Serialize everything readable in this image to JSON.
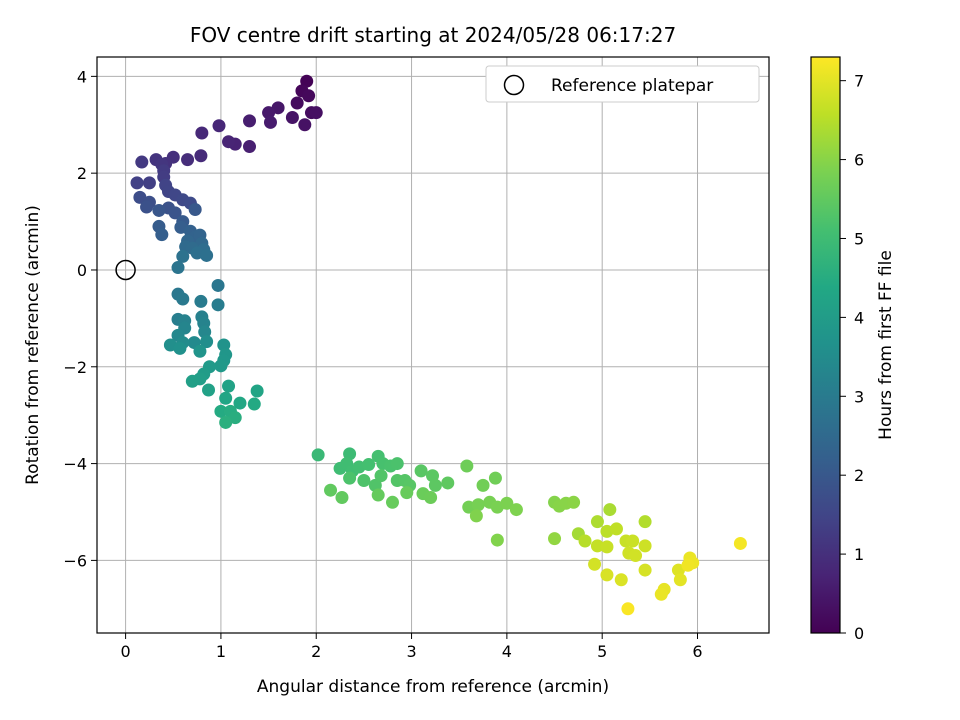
{
  "chart_data": {
    "type": "scatter",
    "title": "FOV centre drift starting at 2024/05/28 06:17:27",
    "xlabel": "Angular distance from reference (arcmin)",
    "ylabel": "Rotation from reference (arcmin)",
    "xlim": [
      -0.3,
      6.75
    ],
    "ylim": [
      -7.5,
      4.4
    ],
    "x_ticks": [
      0,
      1,
      2,
      3,
      4,
      5,
      6
    ],
    "y_ticks": [
      -6,
      -4,
      -2,
      0,
      2,
      4
    ],
    "grid": true,
    "legend": {
      "placement": "top-right",
      "entries": [
        "Reference platepar"
      ]
    },
    "reference_point": {
      "x": 0,
      "y": 0
    },
    "colorbar": {
      "label": "Hours from first FF file",
      "range": [
        0,
        7.3
      ],
      "ticks": [
        0,
        1,
        2,
        3,
        4,
        5,
        6,
        7
      ],
      "colormap": "viridis"
    },
    "points": [
      {
        "x": 1.9,
        "y": 3.9,
        "c": 0.05
      },
      {
        "x": 1.85,
        "y": 3.7,
        "c": 0.1
      },
      {
        "x": 1.92,
        "y": 3.6,
        "c": 0.15
      },
      {
        "x": 1.8,
        "y": 3.45,
        "c": 0.2
      },
      {
        "x": 1.95,
        "y": 3.25,
        "c": 0.25
      },
      {
        "x": 2.0,
        "y": 3.25,
        "c": 0.3
      },
      {
        "x": 1.88,
        "y": 3.0,
        "c": 0.35
      },
      {
        "x": 1.75,
        "y": 3.15,
        "c": 0.4
      },
      {
        "x": 1.6,
        "y": 3.35,
        "c": 0.45
      },
      {
        "x": 1.5,
        "y": 3.25,
        "c": 0.5
      },
      {
        "x": 1.52,
        "y": 3.05,
        "c": 0.55
      },
      {
        "x": 1.3,
        "y": 3.08,
        "c": 0.6
      },
      {
        "x": 1.3,
        "y": 2.55,
        "c": 0.65
      },
      {
        "x": 1.15,
        "y": 2.6,
        "c": 0.7
      },
      {
        "x": 1.08,
        "y": 2.65,
        "c": 0.75
      },
      {
        "x": 0.98,
        "y": 2.98,
        "c": 0.8
      },
      {
        "x": 0.8,
        "y": 2.83,
        "c": 0.85
      },
      {
        "x": 0.79,
        "y": 2.36,
        "c": 0.9
      },
      {
        "x": 0.65,
        "y": 2.28,
        "c": 0.95
      },
      {
        "x": 0.5,
        "y": 2.33,
        "c": 1.0
      },
      {
        "x": 0.42,
        "y": 2.2,
        "c": 1.05
      },
      {
        "x": 0.32,
        "y": 2.28,
        "c": 1.1
      },
      {
        "x": 0.38,
        "y": 2.18,
        "c": 1.15
      },
      {
        "x": 0.17,
        "y": 2.23,
        "c": 1.2
      },
      {
        "x": 0.4,
        "y": 2.05,
        "c": 1.25
      },
      {
        "x": 0.4,
        "y": 1.92,
        "c": 1.3
      },
      {
        "x": 0.25,
        "y": 1.8,
        "c": 1.35
      },
      {
        "x": 0.12,
        "y": 1.8,
        "c": 1.4
      },
      {
        "x": 0.42,
        "y": 1.75,
        "c": 1.45
      },
      {
        "x": 0.45,
        "y": 1.62,
        "c": 1.5
      },
      {
        "x": 0.52,
        "y": 1.55,
        "c": 1.55
      },
      {
        "x": 0.6,
        "y": 1.45,
        "c": 1.6
      },
      {
        "x": 0.68,
        "y": 1.38,
        "c": 1.65
      },
      {
        "x": 0.15,
        "y": 1.5,
        "c": 1.7
      },
      {
        "x": 0.25,
        "y": 1.4,
        "c": 1.75
      },
      {
        "x": 0.22,
        "y": 1.3,
        "c": 1.8
      },
      {
        "x": 0.45,
        "y": 1.28,
        "c": 1.85
      },
      {
        "x": 0.52,
        "y": 1.18,
        "c": 1.9
      },
      {
        "x": 0.35,
        "y": 1.23,
        "c": 1.95
      },
      {
        "x": 0.73,
        "y": 1.25,
        "c": 2.0
      },
      {
        "x": 0.6,
        "y": 1.0,
        "c": 2.05
      },
      {
        "x": 0.35,
        "y": 0.9,
        "c": 2.1
      },
      {
        "x": 0.58,
        "y": 0.88,
        "c": 2.15
      },
      {
        "x": 0.38,
        "y": 0.73,
        "c": 2.2
      },
      {
        "x": 0.68,
        "y": 0.8,
        "c": 2.25
      },
      {
        "x": 0.73,
        "y": 0.68,
        "c": 2.3
      },
      {
        "x": 0.78,
        "y": 0.72,
        "c": 2.35
      },
      {
        "x": 0.65,
        "y": 0.6,
        "c": 2.4
      },
      {
        "x": 0.8,
        "y": 0.55,
        "c": 2.45
      },
      {
        "x": 0.63,
        "y": 0.48,
        "c": 2.5
      },
      {
        "x": 0.7,
        "y": 0.45,
        "c": 2.55
      },
      {
        "x": 0.82,
        "y": 0.42,
        "c": 2.6
      },
      {
        "x": 0.75,
        "y": 0.35,
        "c": 2.65
      },
      {
        "x": 0.85,
        "y": 0.3,
        "c": 2.7
      },
      {
        "x": 0.6,
        "y": 0.28,
        "c": 2.75
      },
      {
        "x": 0.55,
        "y": 0.05,
        "c": 2.8
      },
      {
        "x": 0.97,
        "y": -0.32,
        "c": 2.85
      },
      {
        "x": 0.55,
        "y": -0.5,
        "c": 2.9
      },
      {
        "x": 0.6,
        "y": -0.6,
        "c": 2.95
      },
      {
        "x": 0.79,
        "y": -0.65,
        "c": 3.0
      },
      {
        "x": 0.97,
        "y": -0.72,
        "c": 3.05
      },
      {
        "x": 0.55,
        "y": -1.02,
        "c": 3.1
      },
      {
        "x": 0.8,
        "y": -0.97,
        "c": 3.15
      },
      {
        "x": 0.62,
        "y": -1.05,
        "c": 3.2
      },
      {
        "x": 0.82,
        "y": -1.1,
        "c": 3.25
      },
      {
        "x": 0.62,
        "y": -1.2,
        "c": 3.3
      },
      {
        "x": 0.83,
        "y": -1.28,
        "c": 3.35
      },
      {
        "x": 0.55,
        "y": -1.35,
        "c": 3.4
      },
      {
        "x": 0.72,
        "y": -1.5,
        "c": 3.45
      },
      {
        "x": 0.6,
        "y": -1.5,
        "c": 3.5
      },
      {
        "x": 0.85,
        "y": -1.48,
        "c": 3.55
      },
      {
        "x": 0.47,
        "y": -1.55,
        "c": 3.6
      },
      {
        "x": 0.57,
        "y": -1.62,
        "c": 3.65
      },
      {
        "x": 1.03,
        "y": -1.55,
        "c": 3.7
      },
      {
        "x": 0.78,
        "y": -1.68,
        "c": 3.75
      },
      {
        "x": 1.05,
        "y": -1.75,
        "c": 3.8
      },
      {
        "x": 1.03,
        "y": -1.87,
        "c": 3.85
      },
      {
        "x": 1.0,
        "y": -1.98,
        "c": 3.9
      },
      {
        "x": 0.88,
        "y": -2.0,
        "c": 3.95
      },
      {
        "x": 0.82,
        "y": -2.15,
        "c": 4.0
      },
      {
        "x": 0.78,
        "y": -2.25,
        "c": 4.05
      },
      {
        "x": 0.7,
        "y": -2.3,
        "c": 4.1
      },
      {
        "x": 0.87,
        "y": -2.48,
        "c": 4.15
      },
      {
        "x": 1.08,
        "y": -2.4,
        "c": 4.2
      },
      {
        "x": 1.38,
        "y": -2.5,
        "c": 4.25
      },
      {
        "x": 1.05,
        "y": -2.65,
        "c": 4.3
      },
      {
        "x": 1.2,
        "y": -2.75,
        "c": 4.35
      },
      {
        "x": 1.35,
        "y": -2.77,
        "c": 4.4
      },
      {
        "x": 1.0,
        "y": -2.92,
        "c": 4.45
      },
      {
        "x": 1.1,
        "y": -2.92,
        "c": 4.5
      },
      {
        "x": 1.15,
        "y": -3.05,
        "c": 4.55
      },
      {
        "x": 1.05,
        "y": -3.15,
        "c": 4.6
      },
      {
        "x": 2.02,
        "y": -3.82,
        "c": 4.9
      },
      {
        "x": 2.35,
        "y": -3.8,
        "c": 4.95
      },
      {
        "x": 2.25,
        "y": -4.1,
        "c": 5.0
      },
      {
        "x": 2.32,
        "y": -4.0,
        "c": 5.02
      },
      {
        "x": 2.38,
        "y": -4.15,
        "c": 5.05
      },
      {
        "x": 2.45,
        "y": -4.07,
        "c": 5.08
      },
      {
        "x": 2.55,
        "y": -4.02,
        "c": 5.1
      },
      {
        "x": 2.65,
        "y": -3.85,
        "c": 5.12
      },
      {
        "x": 2.7,
        "y": -4.0,
        "c": 5.15
      },
      {
        "x": 2.78,
        "y": -4.05,
        "c": 5.18
      },
      {
        "x": 2.85,
        "y": -4.0,
        "c": 5.2
      },
      {
        "x": 2.35,
        "y": -4.3,
        "c": 5.22
      },
      {
        "x": 2.5,
        "y": -4.35,
        "c": 5.25
      },
      {
        "x": 2.62,
        "y": -4.45,
        "c": 5.28
      },
      {
        "x": 2.68,
        "y": -4.25,
        "c": 5.3
      },
      {
        "x": 2.85,
        "y": -4.35,
        "c": 5.32
      },
      {
        "x": 2.93,
        "y": -4.35,
        "c": 5.35
      },
      {
        "x": 2.98,
        "y": -4.45,
        "c": 5.38
      },
      {
        "x": 3.1,
        "y": -4.15,
        "c": 5.4
      },
      {
        "x": 3.22,
        "y": -4.25,
        "c": 5.42
      },
      {
        "x": 3.25,
        "y": -4.45,
        "c": 5.45
      },
      {
        "x": 3.38,
        "y": -4.4,
        "c": 5.48
      },
      {
        "x": 2.15,
        "y": -4.55,
        "c": 5.5
      },
      {
        "x": 2.27,
        "y": -4.7,
        "c": 5.52
      },
      {
        "x": 2.65,
        "y": -4.65,
        "c": 5.55
      },
      {
        "x": 2.8,
        "y": -4.8,
        "c": 5.58
      },
      {
        "x": 2.95,
        "y": -4.6,
        "c": 5.6
      },
      {
        "x": 3.12,
        "y": -4.62,
        "c": 5.62
      },
      {
        "x": 3.2,
        "y": -4.7,
        "c": 5.65
      },
      {
        "x": 3.58,
        "y": -4.05,
        "c": 5.68
      },
      {
        "x": 3.88,
        "y": -4.3,
        "c": 5.7
      },
      {
        "x": 3.75,
        "y": -4.45,
        "c": 5.72
      },
      {
        "x": 3.6,
        "y": -4.9,
        "c": 5.75
      },
      {
        "x": 3.7,
        "y": -4.85,
        "c": 5.78
      },
      {
        "x": 3.82,
        "y": -4.8,
        "c": 5.8
      },
      {
        "x": 3.9,
        "y": -4.9,
        "c": 5.82
      },
      {
        "x": 4.0,
        "y": -4.82,
        "c": 5.85
      },
      {
        "x": 4.1,
        "y": -4.95,
        "c": 5.88
      },
      {
        "x": 3.68,
        "y": -5.08,
        "c": 5.9
      },
      {
        "x": 3.9,
        "y": -5.58,
        "c": 5.92
      },
      {
        "x": 4.5,
        "y": -4.8,
        "c": 5.95
      },
      {
        "x": 4.55,
        "y": -4.88,
        "c": 5.98
      },
      {
        "x": 4.62,
        "y": -4.82,
        "c": 6.0
      },
      {
        "x": 4.7,
        "y": -4.8,
        "c": 6.02
      },
      {
        "x": 4.5,
        "y": -5.55,
        "c": 6.1
      },
      {
        "x": 4.75,
        "y": -5.45,
        "c": 6.3
      },
      {
        "x": 5.08,
        "y": -4.95,
        "c": 6.35
      },
      {
        "x": 4.95,
        "y": -5.2,
        "c": 6.4
      },
      {
        "x": 5.45,
        "y": -5.2,
        "c": 6.45
      },
      {
        "x": 4.82,
        "y": -5.6,
        "c": 6.5
      },
      {
        "x": 5.05,
        "y": -5.4,
        "c": 6.55
      },
      {
        "x": 5.15,
        "y": -5.35,
        "c": 6.6
      },
      {
        "x": 4.95,
        "y": -5.7,
        "c": 6.65
      },
      {
        "x": 5.05,
        "y": -5.72,
        "c": 6.68
      },
      {
        "x": 5.25,
        "y": -5.6,
        "c": 6.7
      },
      {
        "x": 5.32,
        "y": -5.6,
        "c": 6.72
      },
      {
        "x": 5.45,
        "y": -5.7,
        "c": 6.75
      },
      {
        "x": 5.28,
        "y": -5.85,
        "c": 6.78
      },
      {
        "x": 5.35,
        "y": -5.9,
        "c": 6.8
      },
      {
        "x": 4.92,
        "y": -6.08,
        "c": 6.82
      },
      {
        "x": 5.45,
        "y": -6.2,
        "c": 6.85
      },
      {
        "x": 5.05,
        "y": -6.3,
        "c": 6.88
      },
      {
        "x": 5.2,
        "y": -6.4,
        "c": 6.9
      },
      {
        "x": 5.8,
        "y": -6.2,
        "c": 6.95
      },
      {
        "x": 5.82,
        "y": -6.4,
        "c": 7.0
      },
      {
        "x": 5.65,
        "y": -6.6,
        "c": 7.05
      },
      {
        "x": 5.62,
        "y": -6.7,
        "c": 7.08
      },
      {
        "x": 5.92,
        "y": -5.95,
        "c": 7.1
      },
      {
        "x": 5.95,
        "y": -6.05,
        "c": 7.12
      },
      {
        "x": 5.9,
        "y": -6.1,
        "c": 7.15
      },
      {
        "x": 6.45,
        "y": -5.65,
        "c": 7.2
      },
      {
        "x": 5.27,
        "y": -7.0,
        "c": 7.25
      }
    ]
  }
}
